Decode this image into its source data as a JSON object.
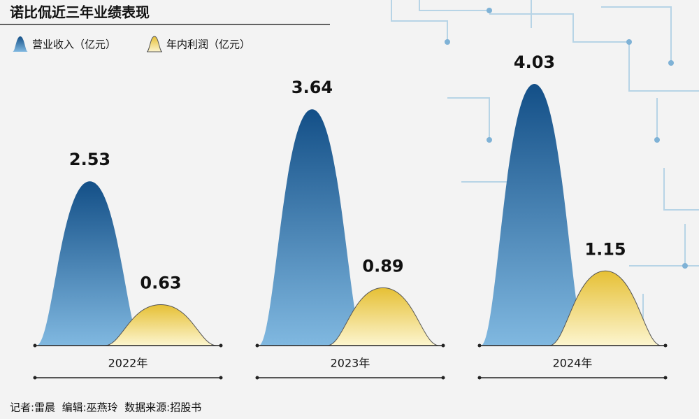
{
  "chart_data": {
    "type": "bell",
    "title": "诺比侃近三年业绩表现",
    "categories": [
      "2022年",
      "2023年",
      "2024年"
    ],
    "series": [
      {
        "name": "营业收入（亿元）",
        "color": "#1b5e98",
        "values": [
          2.53,
          3.64,
          4.03
        ]
      },
      {
        "name": "年内利润（亿元）",
        "color": "#ecc93f",
        "values": [
          0.63,
          0.89,
          1.15
        ]
      }
    ],
    "footer": "记者:雷晨  编辑:巫燕玲  数据来源:招股书"
  }
}
